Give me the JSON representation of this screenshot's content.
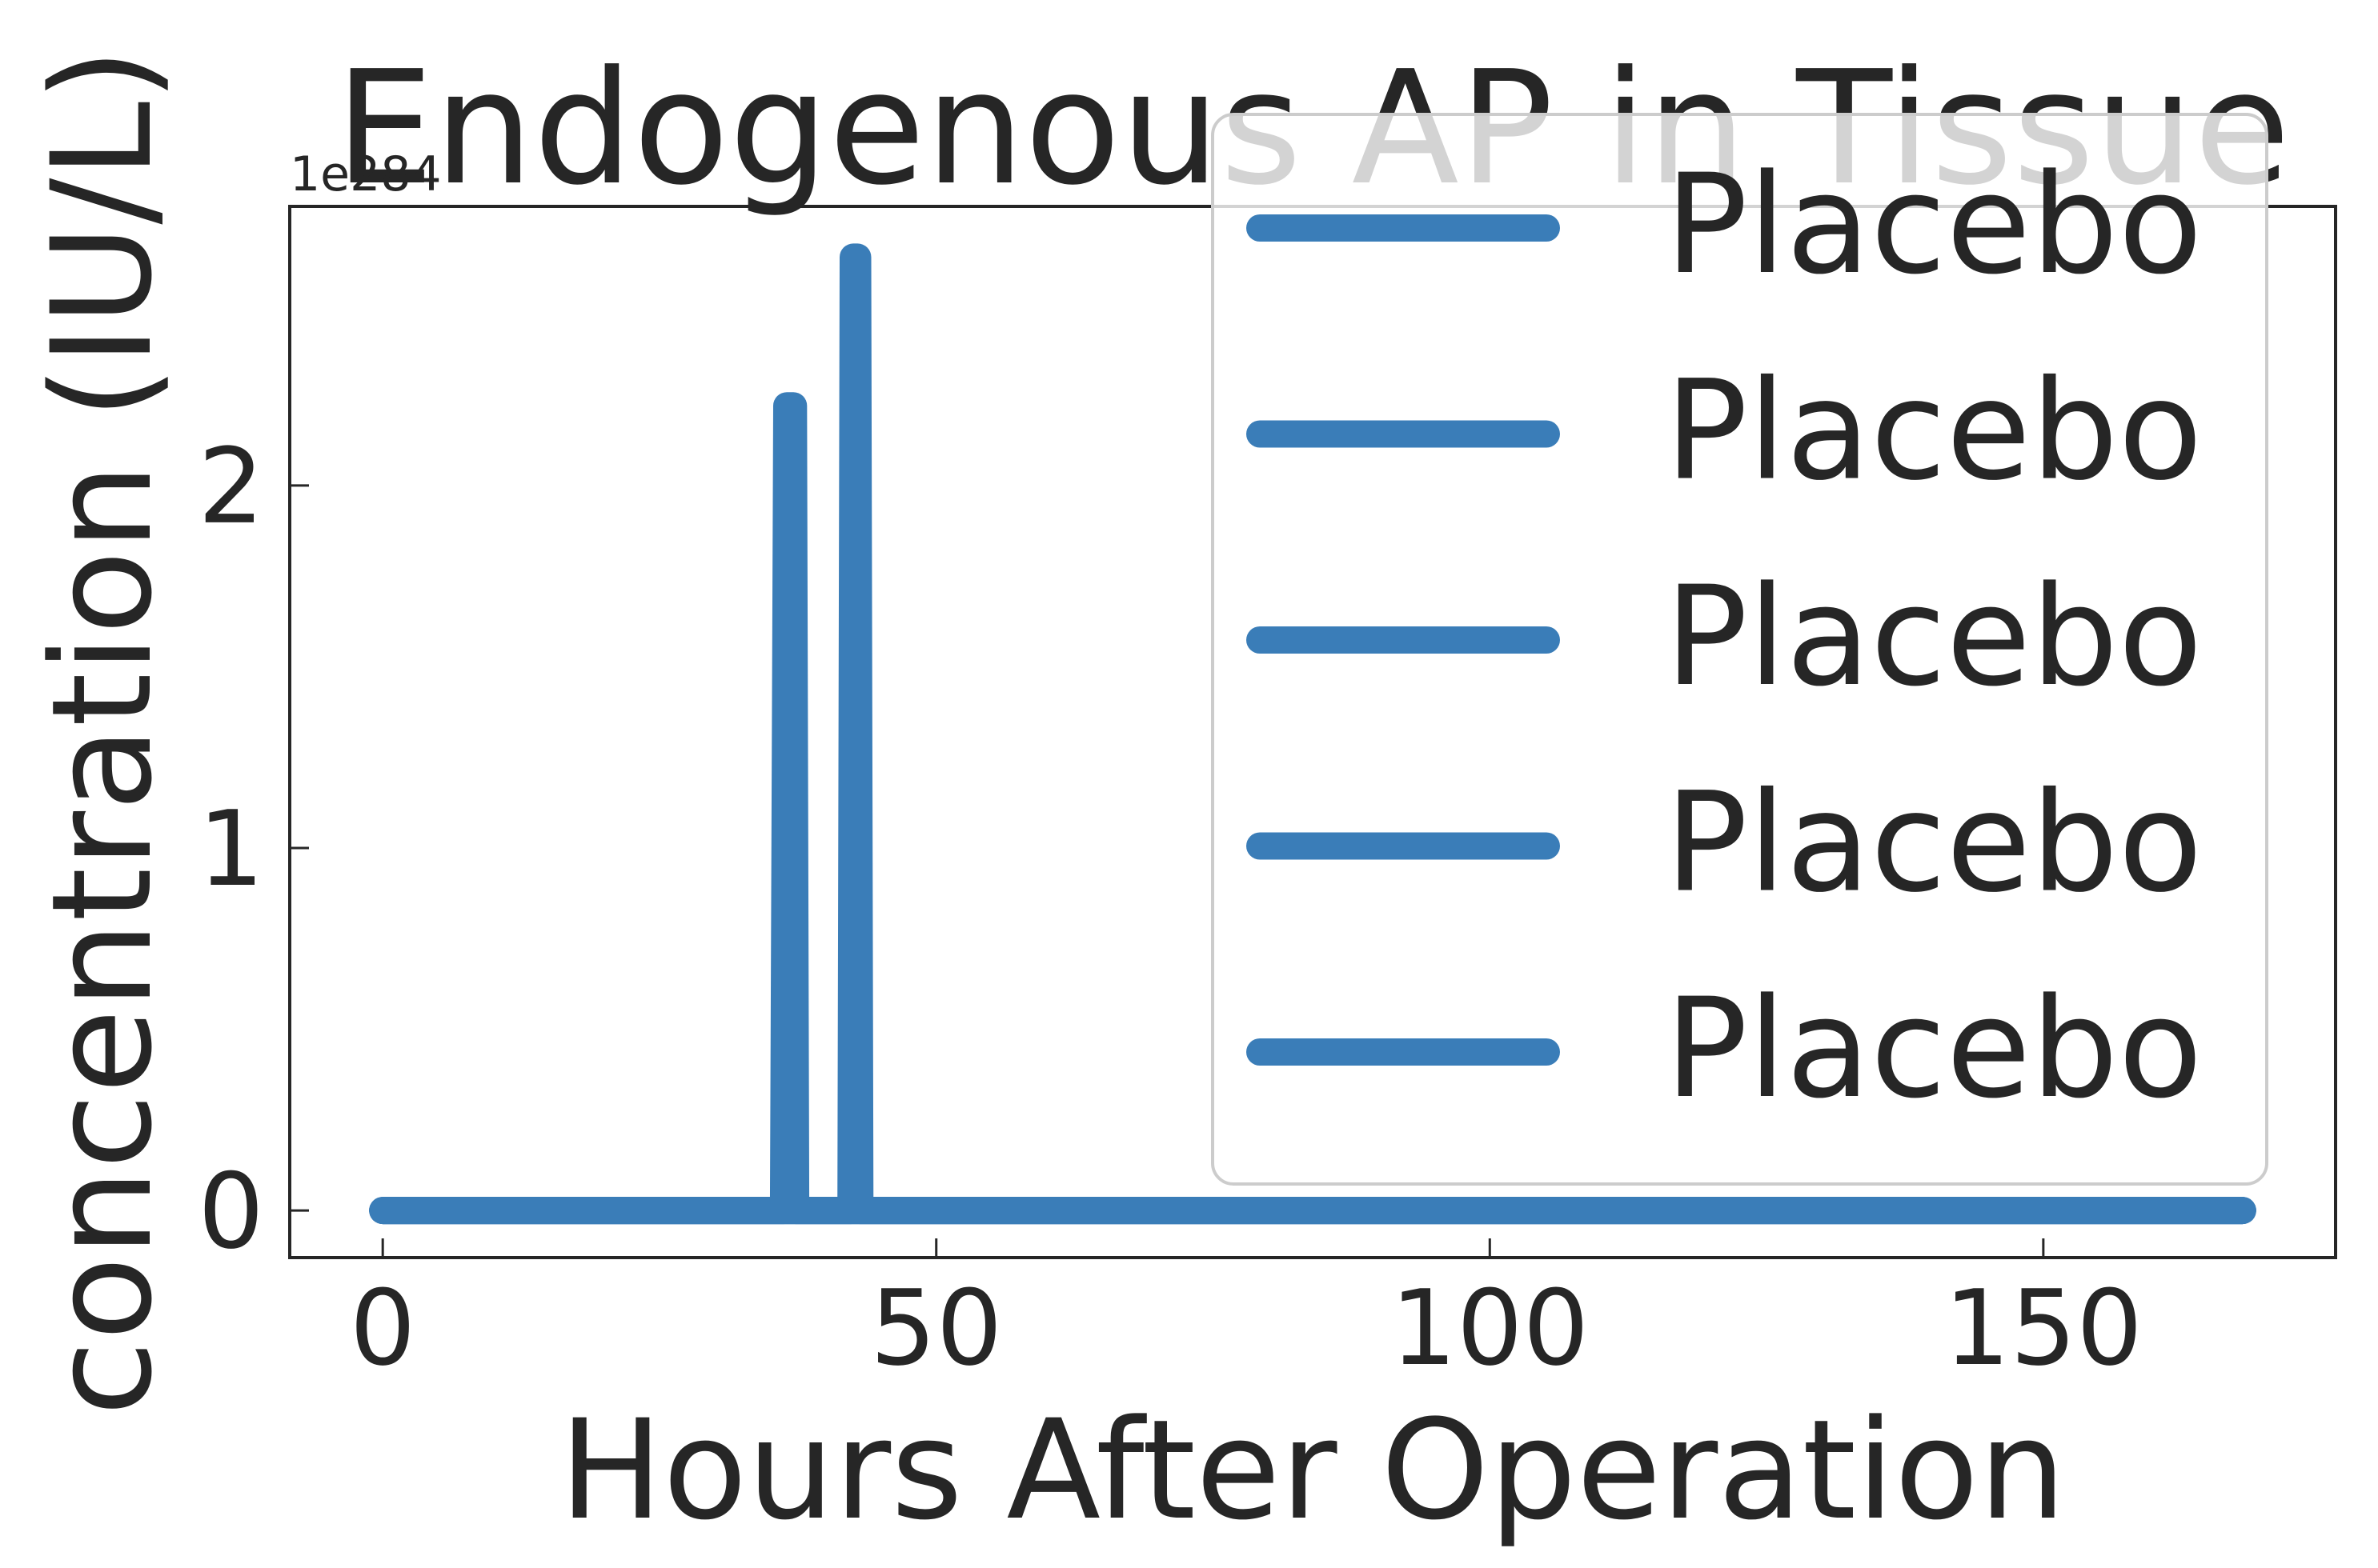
{
  "chart_data": {
    "type": "line",
    "title": "Endogenous AP in Tissue",
    "xlabel": "Hours After Operation",
    "ylabel": "concentration (IU/L)",
    "y_scale_label": "1e284",
    "xlim": [
      -8.4,
      176.4
    ],
    "ylim": [
      -0.13,
      2.77
    ],
    "x_ticks": [
      0,
      50,
      100,
      150
    ],
    "x_tick_labels": [
      "0",
      "50",
      "100",
      "150"
    ],
    "y_ticks": [
      0,
      1,
      2
    ],
    "y_tick_labels": [
      "0",
      "1",
      "2"
    ],
    "grid": false,
    "legend_position": "upper-right",
    "line_color": "#3a7db8",
    "series": [
      {
        "name": "Placebo",
        "points": [
          [
            0,
            0
          ],
          [
            36.2,
            0
          ],
          [
            36.5,
            2.22
          ],
          [
            37.1,
            2.22
          ],
          [
            37.3,
            0
          ],
          [
            42.3,
            0
          ],
          [
            42.5,
            2.63
          ],
          [
            42.9,
            2.63
          ],
          [
            43.1,
            0
          ],
          [
            168,
            0
          ]
        ]
      },
      {
        "name": "Placebo",
        "points": [
          [
            0,
            0
          ],
          [
            168,
            0
          ]
        ]
      },
      {
        "name": "Placebo",
        "points": [
          [
            0,
            0
          ],
          [
            168,
            0
          ]
        ]
      },
      {
        "name": "Placebo",
        "points": [
          [
            0,
            0
          ],
          [
            168,
            0
          ]
        ]
      },
      {
        "name": "Placebo",
        "points": [
          [
            0,
            0
          ],
          [
            168,
            0
          ]
        ]
      }
    ]
  }
}
